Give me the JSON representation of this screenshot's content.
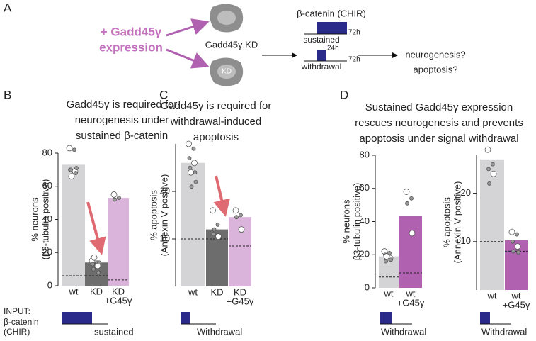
{
  "panels": [
    "A",
    "B",
    "C",
    "D"
  ],
  "panel_a": {
    "expression": [
      "+ Gadd45γ",
      "expression"
    ],
    "kd_label": "Gadd45γ KD",
    "cell_kd": "KD",
    "catenin": "β-catenin (CHIR)",
    "sustained": "sustained",
    "withdrawal": "withdrawal",
    "t72a": "72h",
    "t24": "24h",
    "t72b": "72h",
    "outcome": [
      "neurogenesis?",
      "apoptosis?"
    ]
  },
  "input_axis": [
    "INPUT:",
    "β-catenin",
    "(CHIR)"
  ],
  "chart_data": [
    {
      "type": "bar",
      "title": [
        "Gadd45γ is required for",
        "neurogenesis under",
        "sustained β-catenin"
      ],
      "ylabel": [
        "% neurons",
        "(β3-tubulin positive)"
      ],
      "categories": [
        [
          "wt"
        ],
        [
          "KD"
        ],
        [
          "KD",
          "+G45γ"
        ]
      ],
      "values": [
        73,
        14,
        53
      ],
      "colors": [
        "#d4d4d6",
        "#6d6d6d",
        "#dbb4dc"
      ],
      "baseline": [
        6,
        6,
        3.5
      ],
      "points": [
        [
          83,
          82,
          70,
          69,
          70,
          68,
          66,
          71
        ],
        [
          15,
          14,
          13,
          12,
          10,
          8,
          17,
          14
        ],
        [
          55,
          53,
          52
        ]
      ],
      "ylim": [
        0,
        80
      ],
      "yticks": [
        0,
        20,
        40,
        60,
        80
      ],
      "input": "sustained"
    },
    {
      "type": "bar",
      "title": [
        "Gadd45γ is required for",
        "withdrawal-induced",
        "apoptosis"
      ],
      "ylabel": [
        "% apoptosis",
        "(Annexin V positive)"
      ],
      "categories": [
        [
          "wt"
        ],
        [
          "KD"
        ],
        [
          "KD",
          "+G45γ"
        ]
      ],
      "values": [
        26,
        12,
        14.6
      ],
      "colors": [
        "#d4d4d6",
        "#6d6d6d",
        "#dbb4dc"
      ],
      "baseline": [
        10,
        10,
        8.5
      ],
      "points": [
        [
          30,
          29,
          27,
          26,
          25,
          24,
          24,
          22,
          21
        ],
        [
          16,
          13,
          11,
          10.5,
          12
        ],
        [
          16,
          15,
          14.6,
          12
        ]
      ],
      "ylim": [
        0,
        30
      ],
      "yticks": [
        10,
        20
      ],
      "input": "Withdrawal"
    },
    {
      "type": "bar",
      "title": [
        "Sustained Gadd45γ expression",
        "rescues neurogenesis and prevents",
        "apoptosis under signal withdrawal"
      ],
      "ylabel": [
        "% neurons",
        "β3-tubulin positive)"
      ],
      "categories": [
        [
          "wt"
        ],
        [
          "wt",
          "+G45γ"
        ]
      ],
      "values": [
        19,
        43.5
      ],
      "colors": [
        "#d4d4d6",
        "#b062b0"
      ],
      "baseline": [
        6.5,
        9
      ],
      "points": [
        [
          22,
          21,
          20,
          18,
          16,
          17,
          19
        ],
        [
          58,
          54,
          51,
          33
        ]
      ],
      "ylim": [
        0,
        80
      ],
      "yticks": [
        0,
        20,
        40,
        60,
        80
      ],
      "input": "Withdrawal"
    },
    {
      "type": "bar",
      "ylabel": [
        "% apoptosis",
        "(Annexin V positive)"
      ],
      "categories": [
        [
          "wt"
        ],
        [
          "wt",
          "+G45γ"
        ]
      ],
      "values": [
        27,
        10.3
      ],
      "colors": [
        "#d4d4d6",
        "#b062b0"
      ],
      "baseline": [
        10,
        8
      ],
      "points": [
        [
          29,
          26,
          25,
          24,
          22
        ],
        [
          12,
          11.5,
          10,
          9,
          8,
          7.8
        ]
      ],
      "ylim": [
        0,
        28
      ],
      "yticks": [
        10,
        20
      ],
      "input": "Withdrawal"
    }
  ]
}
